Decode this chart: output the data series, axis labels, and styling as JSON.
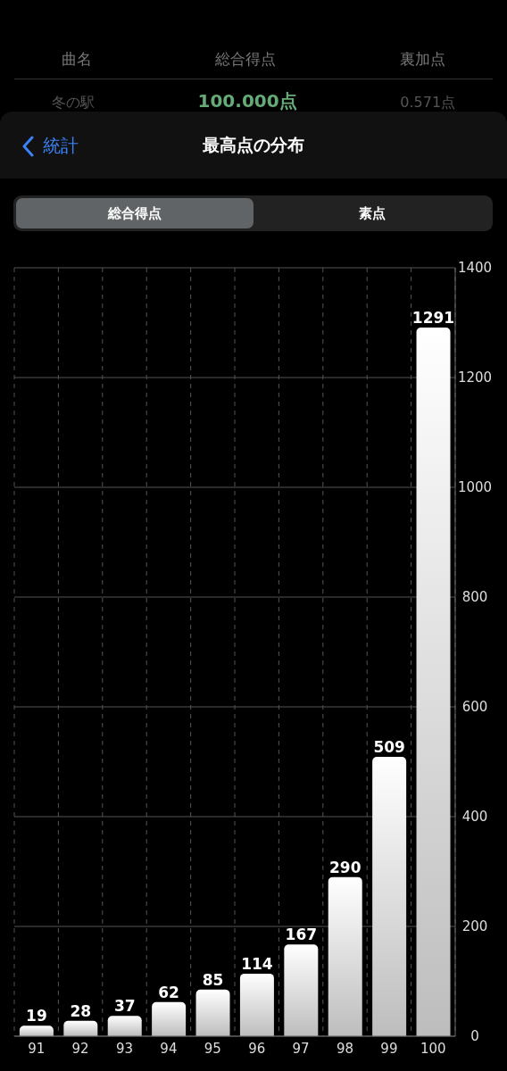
{
  "chart_data": {
    "type": "bar",
    "title": "最高点の分布",
    "annotations": [
      "曲名",
      "総合得点",
      "裏加点",
      "冬の駅",
      "100.000点",
      "0.571点",
      "統計",
      "総合得点",
      "素点"
    ],
    "categories": [
      "91",
      "92",
      "93",
      "94",
      "95",
      "96",
      "97",
      "98",
      "99",
      "100"
    ],
    "values": [
      19,
      28,
      37,
      62,
      85,
      114,
      167,
      290,
      509,
      1291
    ],
    "color": "#bdbdbd",
    "ylim": [
      0,
      1400
    ],
    "yticks": [
      0,
      200,
      400,
      600,
      800,
      1000,
      1200,
      1400
    ],
    "grid": true,
    "data_labels": true
  }
}
